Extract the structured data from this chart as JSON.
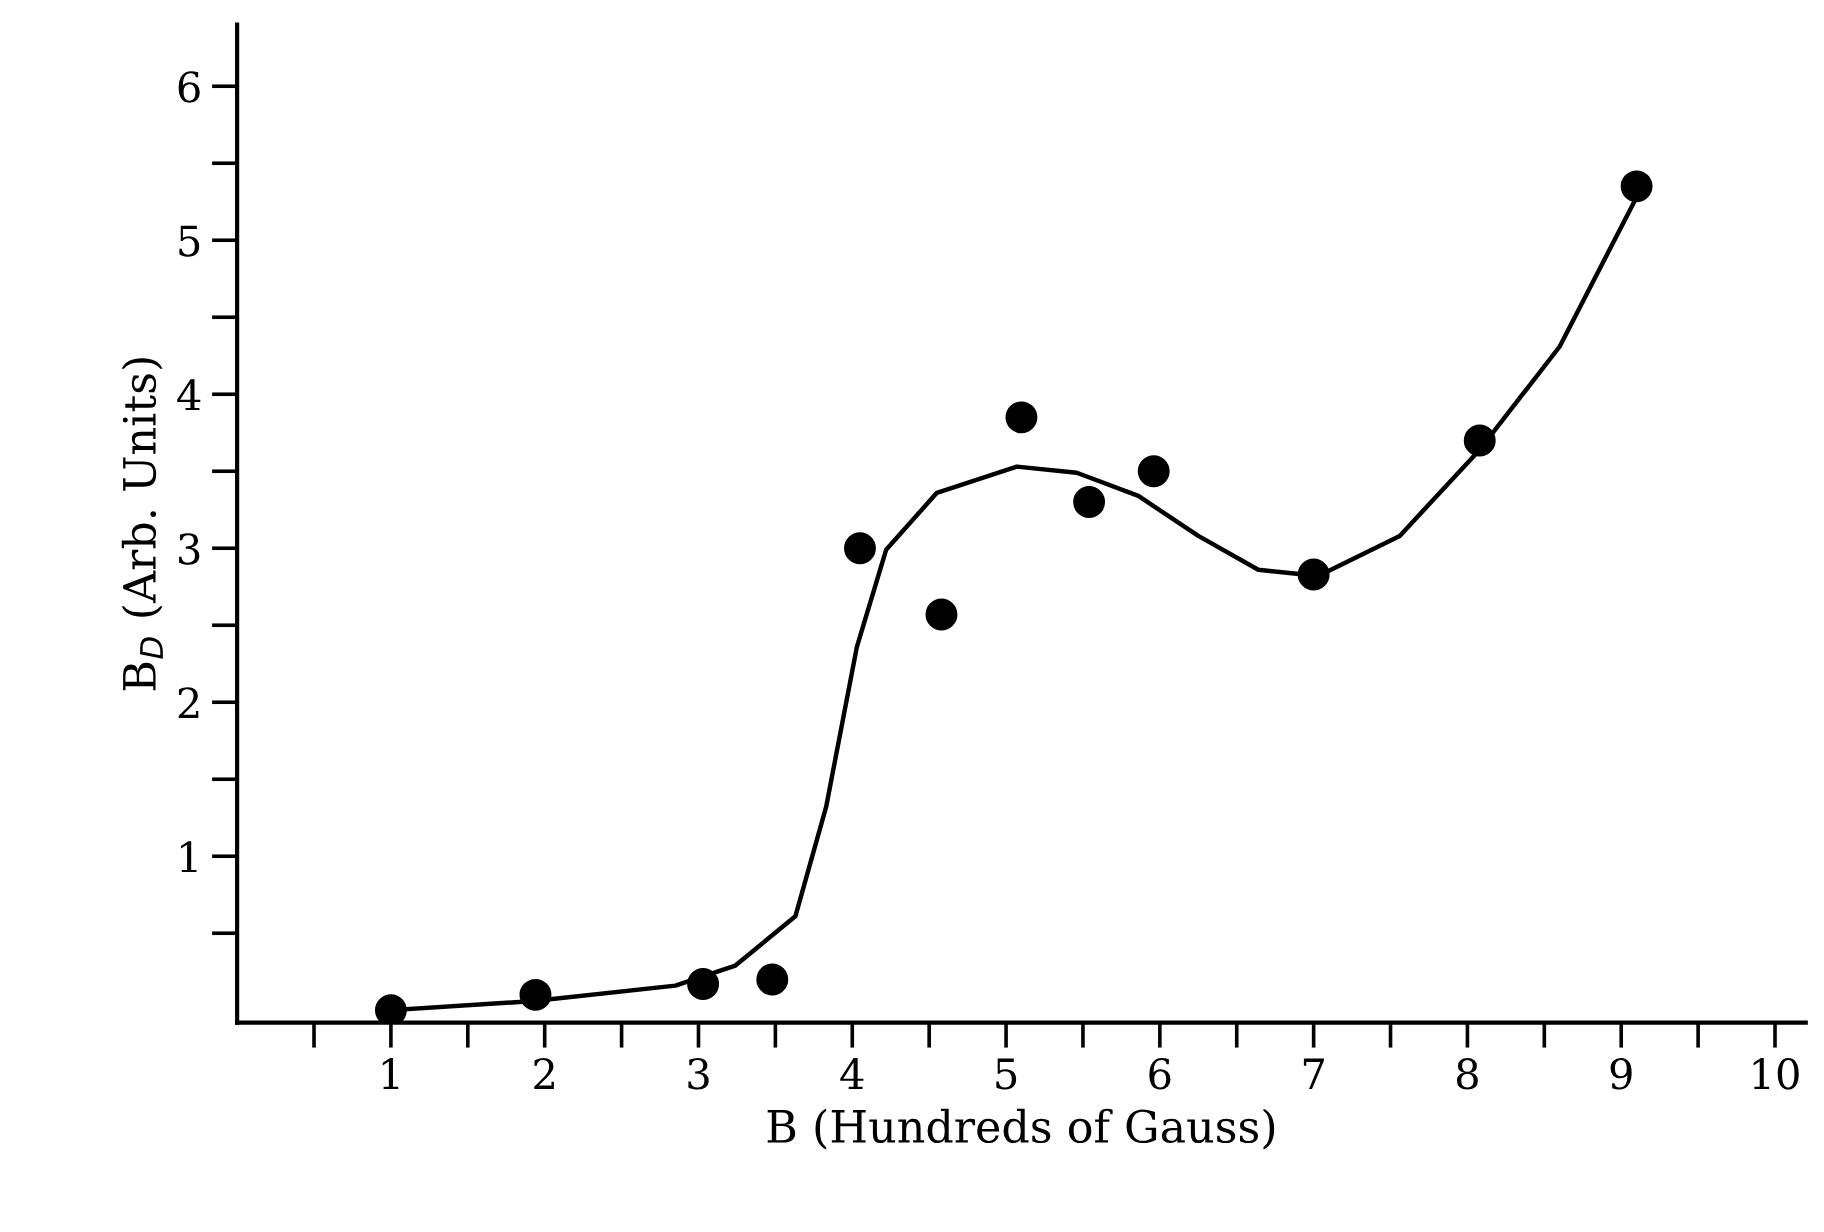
{
  "chart_data": {
    "type": "scatter",
    "xlabel": "B (Hundreds of Gauss)",
    "ylabel": "B$_{D}$ (Arb. Units)",
    "xlim": [
      0,
      10.2
    ],
    "ylim": [
      -0.08,
      6.4
    ],
    "xticks": [
      {
        "value": 0.5,
        "label": null
      },
      1,
      {
        "value": 1.5,
        "label": null
      },
      2,
      {
        "value": 2.5,
        "label": null
      },
      3,
      {
        "value": 3.5,
        "label": null
      },
      4,
      {
        "value": 4.5,
        "label": null
      },
      5,
      {
        "value": 5.5,
        "label": null
      },
      6,
      {
        "value": 6.5,
        "label": null
      },
      7,
      {
        "value": 7.5,
        "label": null
      },
      8,
      {
        "value": 8.5,
        "label": null
      },
      9,
      {
        "value": 9.5,
        "label": null
      },
      10
    ],
    "yticks": [
      {
        "value": 0.5,
        "label": null
      },
      1,
      {
        "value": 1.5,
        "label": null
      },
      2,
      {
        "value": 2.5,
        "label": null
      },
      3,
      {
        "value": 3.5,
        "label": null
      },
      4,
      {
        "value": 4.5,
        "label": null
      },
      5,
      {
        "value": 5.5,
        "label": null
      },
      6
    ],
    "grid": false,
    "legend": false,
    "series": [
      {
        "color": "#000000",
        "marker": "circle",
        "x": [
          1.0,
          1.94,
          3.03,
          3.48,
          4.05,
          4.58,
          5.1,
          5.54,
          5.96,
          7.0,
          8.08,
          9.1
        ],
        "values": [
          0.0,
          0.1,
          0.17,
          0.2,
          3.0,
          2.57,
          3.85,
          3.3,
          3.5,
          2.83,
          3.7,
          5.35
        ]
      },
      {
        "type": "line",
        "color": "#000000",
        "marker": "none",
        "line_style": "solid",
        "x": [
          1.0,
          1.93,
          2.85,
          3.24,
          3.63,
          3.83,
          4.03,
          4.22,
          4.55,
          5.07,
          5.46,
          5.86,
          6.25,
          6.64,
          7.03,
          7.56,
          8.08,
          8.6,
          9.1
        ],
        "values": [
          0.0,
          0.06,
          0.16,
          0.29,
          0.61,
          1.32,
          2.36,
          2.99,
          3.36,
          3.53,
          3.49,
          3.34,
          3.08,
          2.86,
          2.82,
          3.08,
          3.64,
          4.31,
          5.28
        ]
      }
    ]
  }
}
